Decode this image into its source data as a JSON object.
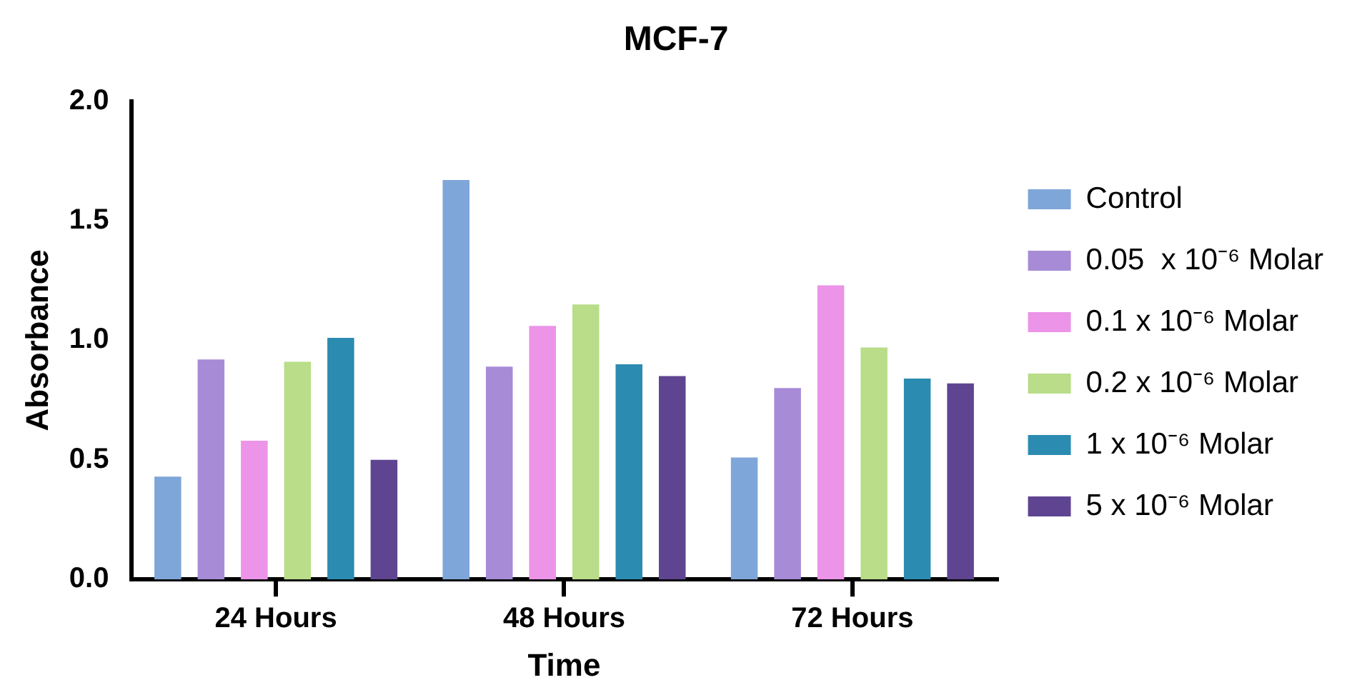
{
  "chart_data": {
    "type": "bar",
    "title": "MCF-7",
    "xlabel": "Time",
    "ylabel": "Absorbance",
    "categories": [
      "24 Hours",
      "48 Hours",
      "72 Hours"
    ],
    "series": [
      {
        "name": "Control",
        "color": "#7ea6d8",
        "values": [
          0.43,
          1.67,
          0.51
        ]
      },
      {
        "name": "0.05  x 10⁻⁶ Molar",
        "color": "#a78bd6",
        "values": [
          0.92,
          0.89,
          0.8
        ]
      },
      {
        "name": "0.1 x 10⁻⁶ Molar",
        "color": "#eb94e8",
        "values": [
          0.58,
          1.06,
          1.23
        ]
      },
      {
        "name": "0.2 x 10⁻⁶ Molar",
        "color": "#b9dd88",
        "values": [
          0.91,
          1.15,
          0.97
        ]
      },
      {
        "name": "1 x 10⁻⁶ Molar",
        "color": "#2b8bb0",
        "values": [
          1.01,
          0.9,
          0.84
        ]
      },
      {
        "name": "5 x 10⁻⁶ Molar",
        "color": "#5f4591",
        "values": [
          0.5,
          0.85,
          0.82
        ]
      }
    ],
    "ylim": [
      0,
      2
    ],
    "yticks": [
      {
        "value": 0,
        "label": "0.0"
      },
      {
        "value": 0.5,
        "label": "0.5"
      },
      {
        "value": 1,
        "label": "1.0"
      },
      {
        "value": 1.5,
        "label": "1.5"
      },
      {
        "value": 2,
        "label": "2.0"
      }
    ],
    "grid": false,
    "legend": "right"
  }
}
